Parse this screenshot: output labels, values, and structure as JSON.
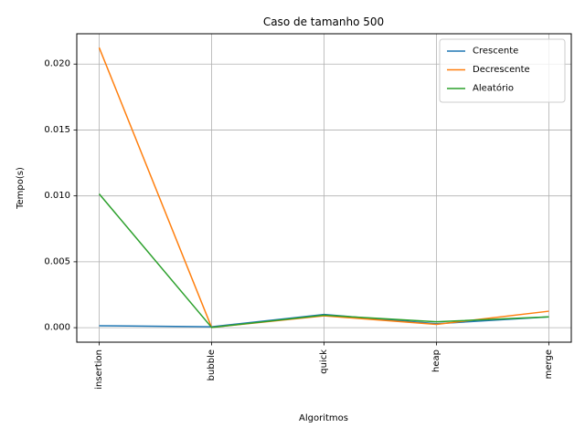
{
  "chart_data": {
    "type": "line",
    "title": "Caso de tamanho 500",
    "xlabel": "Algoritmos",
    "ylabel": "Tempo(s)",
    "categories": [
      "insertion",
      "bubble",
      "quick",
      "heap",
      "merge"
    ],
    "ylim": [
      -0.0011,
      0.0223
    ],
    "yticks": [
      "0.000",
      "0.005",
      "0.010",
      "0.015",
      "0.020"
    ],
    "grid": true,
    "legend_position": "top-right",
    "series": [
      {
        "name": "Crescente",
        "color": "#1f77b4",
        "values": [
          0.00015,
          7e-05,
          0.001,
          0.0003,
          0.00082
        ]
      },
      {
        "name": "Decrescente",
        "color": "#ff7f0e",
        "values": [
          0.02125,
          2e-05,
          0.0009,
          0.00025,
          0.00125
        ]
      },
      {
        "name": "Aleatório",
        "color": "#2ca02c",
        "values": [
          0.01015,
          2e-05,
          0.00095,
          0.00045,
          0.00082
        ]
      }
    ]
  }
}
